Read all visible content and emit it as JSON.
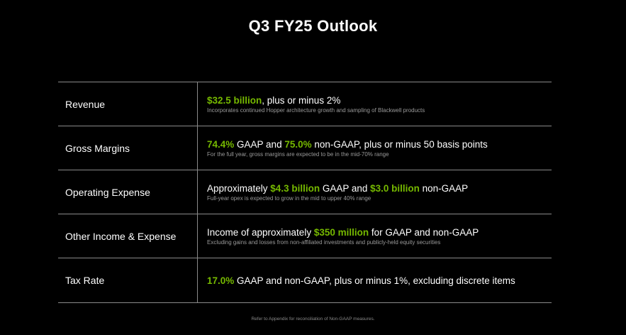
{
  "title": "Q3 FY25 Outlook",
  "accent_color": "#76b900",
  "rows": [
    {
      "label": "Revenue",
      "parts": [
        {
          "text": "$32.5 billion",
          "highlight": true
        },
        {
          "text": ", plus or minus 2%",
          "highlight": false
        }
      ],
      "note": "Incorporates continued Hopper architecture growth and sampling of Blackwell products"
    },
    {
      "label": "Gross Margins",
      "parts": [
        {
          "text": "74.4%",
          "highlight": true
        },
        {
          "text": " GAAP and ",
          "highlight": false
        },
        {
          "text": "75.0%",
          "highlight": true
        },
        {
          "text": " non-GAAP, plus or minus 50 basis points",
          "highlight": false
        }
      ],
      "note": "For the full year, gross margins are expected to be in the mid-70% range"
    },
    {
      "label": "Operating Expense",
      "parts": [
        {
          "text": "Approximately ",
          "highlight": false
        },
        {
          "text": "$4.3 billion",
          "highlight": true
        },
        {
          "text": " GAAP and ",
          "highlight": false
        },
        {
          "text": "$3.0 billion",
          "highlight": true
        },
        {
          "text": " non-GAAP",
          "highlight": false
        }
      ],
      "note": "Full-year opex is expected to grow in the mid to upper 40% range"
    },
    {
      "label": "Other Income & Expense",
      "parts": [
        {
          "text": "Income of approximately ",
          "highlight": false
        },
        {
          "text": "$350 million",
          "highlight": true
        },
        {
          "text": " for GAAP and non-GAAP",
          "highlight": false
        }
      ],
      "note": "Excluding gains and losses from non-affiliated investments and publicly-held equity securities"
    },
    {
      "label": "Tax Rate",
      "parts": [
        {
          "text": "17.0%",
          "highlight": true
        },
        {
          "text": " GAAP and non-GAAP, plus or minus 1%, excluding discrete items",
          "highlight": false
        }
      ],
      "note": ""
    }
  ],
  "footnote": "Refer to Appendix for reconciliation of Non-GAAP measures."
}
